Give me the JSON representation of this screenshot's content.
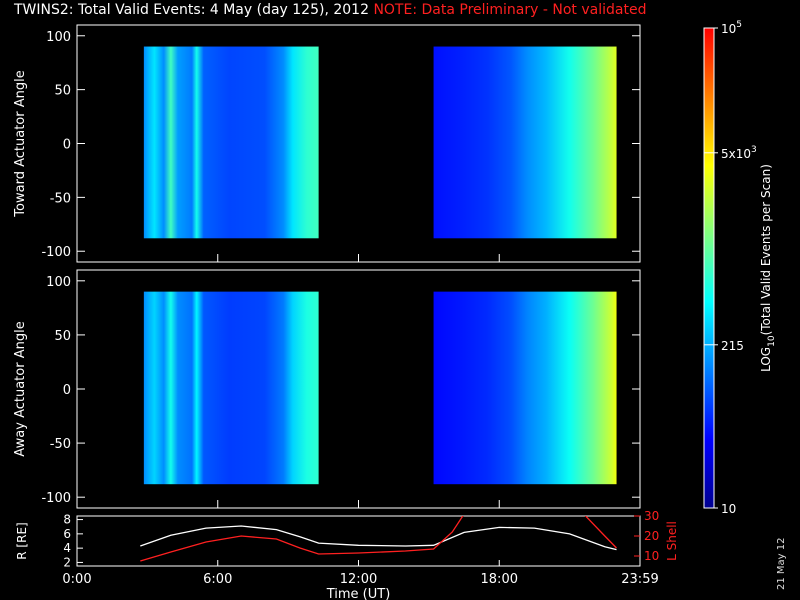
{
  "title": {
    "main": "TWINS2: Total Valid Events:  4 May (day 125), 2012",
    "note": "NOTE: Data Preliminary - Not validated"
  },
  "stamp": "21 May 12",
  "colors": {
    "background": "#000000",
    "axes": "#ffffff",
    "note": "#ff2020",
    "r_line": "#ffffff",
    "lshell_line": "#ff2020",
    "colormap": [
      "#00008f",
      "#0000ff",
      "#0080ff",
      "#00ffff",
      "#80ff80",
      "#ffff00",
      "#ff8000",
      "#ff0000"
    ]
  },
  "chart_data": [
    {
      "type": "heatmap",
      "panel": "toward",
      "ylabel": "Toward Actuator Angle",
      "ylim": [
        -110,
        110
      ],
      "yticks": [
        "100",
        "50",
        "0",
        "-50",
        "-100"
      ],
      "y_range_data": [
        -88,
        90
      ],
      "time_blocks_hours": [
        [
          2.85,
          10.3
        ],
        [
          15.2,
          23.0
        ]
      ],
      "color_stops_hours": [
        [
          2.85,
          0.3
        ],
        [
          3.3,
          0.4
        ],
        [
          3.7,
          0.3
        ],
        [
          4.0,
          0.5
        ],
        [
          4.3,
          0.32
        ],
        [
          4.9,
          0.28
        ],
        [
          5.1,
          0.45
        ],
        [
          5.4,
          0.25
        ],
        [
          6.5,
          0.22
        ],
        [
          8.0,
          0.23
        ],
        [
          8.8,
          0.3
        ],
        [
          9.2,
          0.4
        ],
        [
          9.8,
          0.48
        ],
        [
          10.3,
          0.5
        ],
        [
          15.2,
          0.16
        ],
        [
          16.5,
          0.18
        ],
        [
          17.5,
          0.2
        ],
        [
          18.5,
          0.24
        ],
        [
          19.2,
          0.3
        ],
        [
          20.0,
          0.35
        ],
        [
          21.0,
          0.45
        ],
        [
          22.0,
          0.55
        ],
        [
          22.8,
          0.65
        ],
        [
          23.0,
          0.68
        ]
      ]
    },
    {
      "type": "heatmap",
      "panel": "away",
      "ylabel": "Away Actuator Angle",
      "ylim": [
        -110,
        110
      ],
      "yticks": [
        "100",
        "50",
        "0",
        "-50",
        "-100"
      ],
      "y_range_data": [
        -88,
        90
      ],
      "time_blocks_hours": [
        [
          2.85,
          10.3
        ],
        [
          15.2,
          23.0
        ]
      ],
      "color_stops_hours": [
        [
          2.85,
          0.3
        ],
        [
          3.3,
          0.38
        ],
        [
          3.7,
          0.3
        ],
        [
          4.0,
          0.45
        ],
        [
          4.3,
          0.3
        ],
        [
          4.9,
          0.27
        ],
        [
          5.1,
          0.42
        ],
        [
          5.4,
          0.24
        ],
        [
          6.5,
          0.21
        ],
        [
          8.0,
          0.22
        ],
        [
          8.8,
          0.28
        ],
        [
          9.2,
          0.38
        ],
        [
          9.8,
          0.46
        ],
        [
          10.3,
          0.48
        ],
        [
          15.2,
          0.15
        ],
        [
          16.5,
          0.17
        ],
        [
          17.5,
          0.19
        ],
        [
          18.5,
          0.23
        ],
        [
          19.2,
          0.29
        ],
        [
          20.0,
          0.34
        ],
        [
          21.0,
          0.44
        ],
        [
          22.0,
          0.55
        ],
        [
          22.8,
          0.66
        ],
        [
          23.0,
          0.7
        ]
      ]
    },
    {
      "type": "line",
      "panel": "orbit",
      "xlabel": "Time (UT)",
      "xticks": [
        "0:00",
        "6:00",
        "12:00",
        "18:00",
        "23:59"
      ],
      "xlim": [
        0,
        24
      ],
      "ylabel_left": "R [RE]",
      "ylabel_right": "L Shell",
      "ylim_left": [
        1.5,
        8.5
      ],
      "yticks_left": [
        "8",
        "6",
        "4",
        "2"
      ],
      "ylim_right": [
        5,
        30
      ],
      "yticks_right": [
        "30",
        "20",
        "10"
      ],
      "series": [
        {
          "name": "R [RE]",
          "axis": "left",
          "x": [
            2.7,
            4,
            5.5,
            7,
            8.5,
            9.5,
            10.3,
            12,
            14,
            15.2,
            16.5,
            18,
            19.5,
            21,
            22.5,
            23.0
          ],
          "y": [
            4.3,
            5.8,
            6.8,
            7.1,
            6.6,
            5.6,
            4.7,
            4.4,
            4.3,
            4.4,
            6.2,
            6.9,
            6.8,
            6.0,
            4.2,
            3.8
          ]
        },
        {
          "name": "L Shell",
          "axis": "right",
          "x": [
            2.7,
            4,
            5.5,
            7,
            8.5,
            9.5,
            10.3,
            12,
            14,
            15.2,
            16.0,
            16.5,
            21.6,
            22.5,
            23.0
          ],
          "y": [
            7.5,
            12,
            17,
            20,
            18.5,
            14,
            11,
            11.5,
            12.5,
            13.5,
            22,
            31,
            31,
            20,
            14
          ]
        }
      ]
    }
  ],
  "colorbar": {
    "label_main": "LOG",
    "label_sub": "10",
    "label_rest": "(Total Valid Events per Scan)",
    "ticks": [
      {
        "base": "10",
        "exp": "5",
        "frac": 1.0
      },
      {
        "base": "5x10",
        "exp": "3",
        "frac": 0.74
      },
      {
        "base": "215",
        "exp": "",
        "frac": 0.34
      },
      {
        "base": "10",
        "exp": "",
        "frac": 0.0
      }
    ]
  }
}
